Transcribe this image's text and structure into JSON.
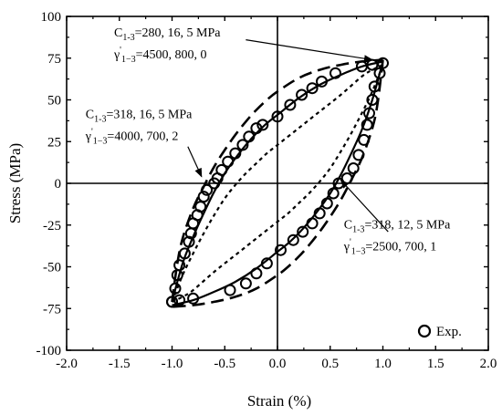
{
  "chart_data": {
    "type": "scatter",
    "xlabel": "Strain (%)",
    "ylabel": "Stress (MPa)",
    "xlim": [
      -2.0,
      2.0
    ],
    "ylim": [
      -100,
      100
    ],
    "xticks": [
      "-2.0",
      "-1.5",
      "-1.0",
      "-0.5",
      "0.0",
      "0.5",
      "1.0",
      "1.5",
      "2.0"
    ],
    "yticks": [
      "-100",
      "-75",
      "-50",
      "-25",
      "0",
      "25",
      "50",
      "75",
      "100"
    ],
    "grid": false,
    "legend_position": "bottom-right",
    "legend": [
      {
        "label": "Exp.",
        "marker": "open-circle"
      }
    ],
    "reference_lines": {
      "x": 0,
      "y": 0
    },
    "series": [
      {
        "style": "open-circle",
        "upper_branch": [
          [
            -1.0,
            -71
          ],
          [
            -0.97,
            -63
          ],
          [
            -0.95,
            -55
          ],
          [
            -0.93,
            -49
          ],
          [
            -0.88,
            -42
          ],
          [
            -0.84,
            -35
          ],
          [
            -0.82,
            -30
          ],
          [
            -0.8,
            -24
          ],
          [
            -0.76,
            -19
          ],
          [
            -0.73,
            -14
          ],
          [
            -0.7,
            -8
          ],
          [
            -0.67,
            -4
          ],
          [
            -0.6,
            0
          ],
          [
            -0.57,
            3
          ],
          [
            -0.53,
            8
          ],
          [
            -0.47,
            13
          ],
          [
            -0.4,
            18
          ],
          [
            -0.33,
            23
          ],
          [
            -0.27,
            28
          ],
          [
            -0.2,
            33
          ],
          [
            -0.14,
            35
          ],
          [
            0.0,
            40
          ],
          [
            0.12,
            47
          ],
          [
            0.23,
            53
          ],
          [
            0.33,
            57
          ],
          [
            0.42,
            61
          ],
          [
            0.55,
            66
          ],
          [
            0.8,
            70
          ],
          [
            0.9,
            71
          ],
          [
            1.0,
            72
          ]
        ],
        "lower_branch": [
          [
            1.0,
            72
          ],
          [
            0.97,
            66
          ],
          [
            0.92,
            58
          ],
          [
            0.9,
            50
          ],
          [
            0.87,
            42
          ],
          [
            0.85,
            35
          ],
          [
            0.82,
            26
          ],
          [
            0.77,
            17
          ],
          [
            0.72,
            9
          ],
          [
            0.66,
            3
          ],
          [
            0.58,
            0
          ],
          [
            0.53,
            -6
          ],
          [
            0.47,
            -12
          ],
          [
            0.4,
            -18
          ],
          [
            0.33,
            -24
          ],
          [
            0.24,
            -29
          ],
          [
            0.15,
            -34
          ],
          [
            0.03,
            -40
          ],
          [
            -0.1,
            -48
          ],
          [
            -0.2,
            -54
          ],
          [
            -0.3,
            -60
          ],
          [
            -0.45,
            -64
          ],
          [
            -0.8,
            -69
          ],
          [
            -0.93,
            -70
          ],
          [
            -1.0,
            -71
          ]
        ]
      },
      {
        "style": "solid",
        "upper_branch": [
          [
            -1.0,
            -71
          ],
          [
            -0.9,
            -48
          ],
          [
            -0.8,
            -32
          ],
          [
            -0.7,
            -18
          ],
          [
            -0.6,
            -5
          ],
          [
            -0.5,
            6
          ],
          [
            -0.4,
            15
          ],
          [
            -0.3,
            23
          ],
          [
            -0.2,
            30
          ],
          [
            -0.1,
            36
          ],
          [
            0.0,
            41
          ],
          [
            0.2,
            51
          ],
          [
            0.4,
            59
          ],
          [
            0.6,
            65
          ],
          [
            0.8,
            70
          ],
          [
            1.0,
            73
          ]
        ],
        "lower_branch": [
          [
            1.0,
            73
          ],
          [
            0.9,
            50
          ],
          [
            0.8,
            32
          ],
          [
            0.7,
            18
          ],
          [
            0.6,
            5
          ],
          [
            0.5,
            -6
          ],
          [
            0.4,
            -15
          ],
          [
            0.3,
            -23
          ],
          [
            0.2,
            -30
          ],
          [
            0.1,
            -36
          ],
          [
            0.0,
            -41
          ],
          [
            -0.2,
            -51
          ],
          [
            -0.4,
            -59
          ],
          [
            -0.6,
            -65
          ],
          [
            -0.8,
            -70
          ],
          [
            -1.0,
            -73
          ]
        ]
      },
      {
        "style": "short-dash",
        "upper_branch": [
          [
            -1.0,
            -71
          ],
          [
            -0.9,
            -55
          ],
          [
            -0.8,
            -42
          ],
          [
            -0.7,
            -30
          ],
          [
            -0.6,
            -19
          ],
          [
            -0.5,
            -9
          ],
          [
            -0.4,
            -1
          ],
          [
            -0.3,
            6
          ],
          [
            -0.2,
            12
          ],
          [
            -0.1,
            18
          ],
          [
            0.0,
            23
          ],
          [
            0.2,
            33
          ],
          [
            0.4,
            43
          ],
          [
            0.6,
            53
          ],
          [
            0.8,
            64
          ],
          [
            0.9,
            68
          ],
          [
            1.0,
            71
          ]
        ],
        "lower_branch": [
          [
            1.0,
            71
          ],
          [
            0.9,
            55
          ],
          [
            0.8,
            42
          ],
          [
            0.7,
            30
          ],
          [
            0.6,
            19
          ],
          [
            0.5,
            9
          ],
          [
            0.4,
            1
          ],
          [
            0.3,
            -6
          ],
          [
            0.2,
            -12
          ],
          [
            0.1,
            -18
          ],
          [
            0.0,
            -23
          ],
          [
            -0.2,
            -33
          ],
          [
            -0.4,
            -43
          ],
          [
            -0.6,
            -53
          ],
          [
            -0.8,
            -64
          ],
          [
            -0.9,
            -68
          ],
          [
            -1.0,
            -71
          ]
        ]
      },
      {
        "style": "long-dash",
        "upper_branch": [
          [
            -1.0,
            -71
          ],
          [
            -0.95,
            -48
          ],
          [
            -0.9,
            -33
          ],
          [
            -0.8,
            -15
          ],
          [
            -0.7,
            -2
          ],
          [
            -0.6,
            10
          ],
          [
            -0.5,
            20
          ],
          [
            -0.4,
            29
          ],
          [
            -0.3,
            37
          ],
          [
            -0.2,
            44
          ],
          [
            -0.1,
            50
          ],
          [
            0.0,
            55
          ],
          [
            0.2,
            63
          ],
          [
            0.4,
            68
          ],
          [
            0.6,
            71
          ],
          [
            0.8,
            73
          ],
          [
            1.0,
            74
          ]
        ],
        "lower_branch": [
          [
            1.0,
            74
          ],
          [
            0.95,
            48
          ],
          [
            0.9,
            33
          ],
          [
            0.8,
            15
          ],
          [
            0.7,
            2
          ],
          [
            0.6,
            -10
          ],
          [
            0.5,
            -20
          ],
          [
            0.4,
            -29
          ],
          [
            0.3,
            -37
          ],
          [
            0.2,
            -44
          ],
          [
            0.1,
            -50
          ],
          [
            0.0,
            -55
          ],
          [
            -0.2,
            -63
          ],
          [
            -0.4,
            -68
          ],
          [
            -0.6,
            -71
          ],
          [
            -0.8,
            -73
          ],
          [
            -1.0,
            -74
          ]
        ]
      }
    ],
    "annotations": [
      {
        "line1": "C",
        "line1_sub": "1-3",
        "line1_rest": "=280, 16, 5 MPa",
        "line2": "γ",
        "line2_sup": "'",
        "line2_sub": "1−3",
        "line2_rest": "=4500, 800, 0",
        "arrow_tip": [
          0.9,
          74
        ],
        "arrow_from": [
          -0.3,
          86
        ],
        "text_anchor": [
          -1.55,
          88
        ]
      },
      {
        "line1": "C",
        "line1_sub": "1-3",
        "line1_rest": "=318, 16, 5 MPa",
        "line2": "γ",
        "line2_sup": "'",
        "line2_sub": "1−3",
        "line2_rest": "=4000, 700, 2",
        "arrow_tip": [
          -0.72,
          4
        ],
        "arrow_from": [
          -0.85,
          22
        ],
        "text_anchor": [
          -1.82,
          39
        ]
      },
      {
        "line1": "C",
        "line1_sub": "1-3",
        "line1_rest": "=318, 12, 5 MPa",
        "line2": "γ",
        "line2_sup": "'",
        "line2_sub": "1−3",
        "line2_rest": "=2500, 700, 1",
        "arrow_tip": [
          0.6,
          2
        ],
        "arrow_from": [
          1.05,
          -29
        ],
        "text_anchor": [
          0.63,
          -27
        ]
      }
    ]
  }
}
